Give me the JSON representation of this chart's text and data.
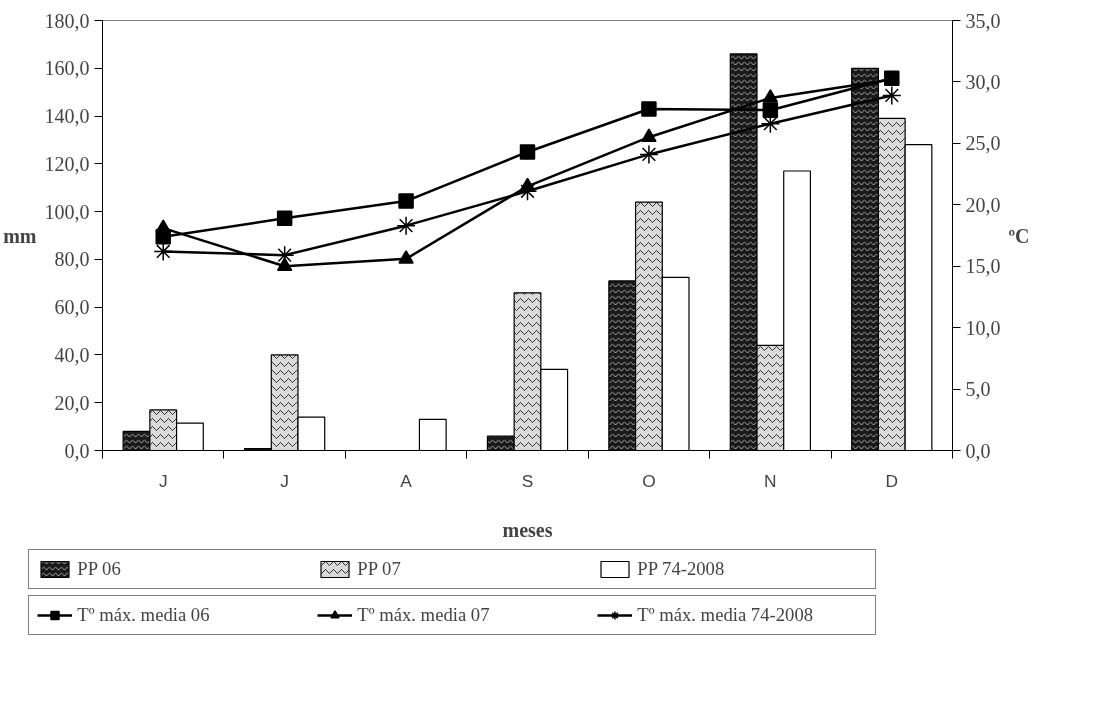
{
  "chart_data": {
    "type": "bar",
    "xlabel": "meses",
    "ylabel": "mm",
    "y2label": "ºC",
    "categories": [
      "J",
      "J",
      "A",
      "S",
      "O",
      "N",
      "D"
    ],
    "series": [
      {
        "name": "PP 06",
        "color": "#1a1a1a",
        "values": [
          8,
          0.8,
          null,
          6,
          71,
          166,
          160
        ]
      },
      {
        "name": "PP 07",
        "color": "#d9d9d9",
        "values": [
          17,
          40,
          null,
          66,
          104,
          44,
          139
        ]
      },
      {
        "name": "PP 74-2008",
        "color": "#ffffff",
        "values": [
          11.5,
          14,
          13,
          34,
          72.5,
          117,
          128
        ]
      },
      {
        "name": "Tº máx. media 06",
        "type": "line",
        "axis": "y2",
        "marker": "square",
        "color": "#000000",
        "values": [
          17.4,
          18.9,
          20.3,
          24.3,
          27.8,
          27.7,
          30.3
        ]
      },
      {
        "name": "Tº máx. media 07",
        "type": "line",
        "axis": "y2",
        "marker": "triangle",
        "color": "#000000",
        "values": [
          18.1,
          15.0,
          15.6,
          21.5,
          25.5,
          28.7,
          30.2
        ]
      },
      {
        "name": "Tº máx. media 74-2008",
        "type": "line",
        "axis": "y2",
        "marker": "cross",
        "color": "#000000",
        "values": [
          16.2,
          15.9,
          18.3,
          21.1,
          24.1,
          26.6,
          28.9
        ]
      }
    ],
    "ylim": [
      0,
      180
    ],
    "yticks": [
      {
        "value": 0,
        "label": "0,0"
      },
      {
        "value": 20,
        "label": "20,0"
      },
      {
        "value": 40,
        "label": "40,0"
      },
      {
        "value": 60,
        "label": "60,0"
      },
      {
        "value": 80,
        "label": "80,0"
      },
      {
        "value": 100,
        "label": "100,0"
      },
      {
        "value": 120,
        "label": "120,0"
      },
      {
        "value": 140,
        "label": "140,0"
      },
      {
        "value": 160,
        "label": "160,0"
      },
      {
        "value": 180,
        "label": "180,0"
      }
    ],
    "y2lim": [
      0,
      35
    ],
    "y2ticks": [
      {
        "value": 0,
        "label": "0,0"
      },
      {
        "value": 5,
        "label": "5,0"
      },
      {
        "value": 10,
        "label": "10,0"
      },
      {
        "value": 15,
        "label": "15,0"
      },
      {
        "value": 20,
        "label": "20,0"
      },
      {
        "value": 25,
        "label": "25,0"
      },
      {
        "value": 30,
        "label": "30,0"
      },
      {
        "value": 35,
        "label": "35,0"
      }
    ],
    "grid": false,
    "legend": "bottom"
  }
}
